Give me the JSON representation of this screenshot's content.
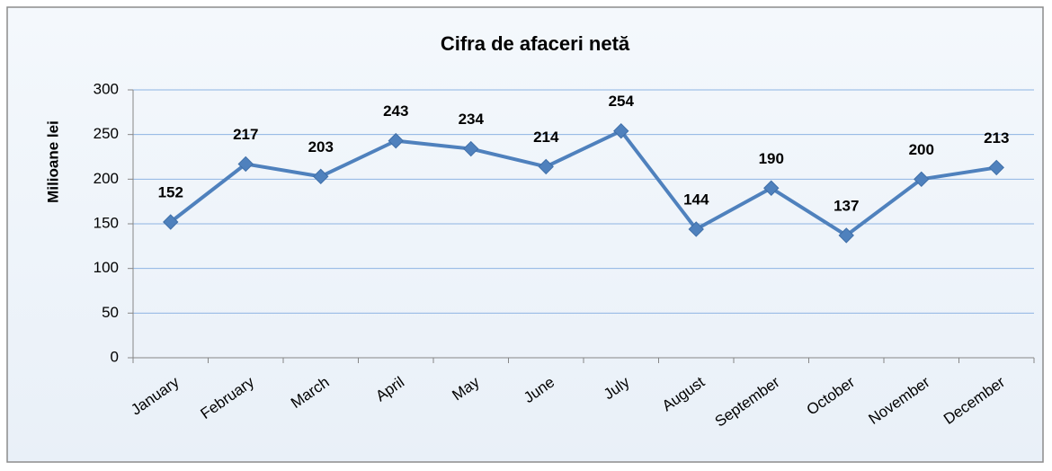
{
  "chart_data": {
    "type": "line",
    "title": "Cifra de afaceri netă",
    "y_label": "Milioane lei",
    "categories": [
      "January",
      "February",
      "March",
      "April",
      "May",
      "June",
      "July",
      "August",
      "September",
      "October",
      "November",
      "December"
    ],
    "values": [
      152,
      217,
      203,
      243,
      234,
      214,
      254,
      144,
      190,
      137,
      200,
      213
    ],
    "color": "#4f81bd",
    "ylim": [
      0,
      300
    ],
    "yticks": [
      0,
      50,
      100,
      150,
      200,
      250,
      300
    ],
    "grid": true
  }
}
